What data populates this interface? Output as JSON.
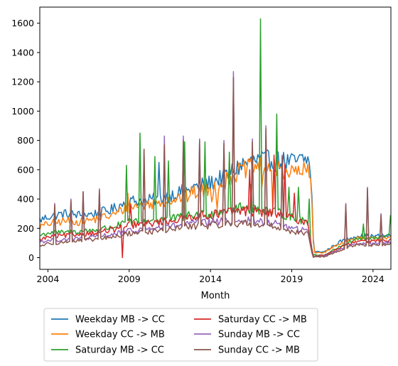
{
  "chart_data": {
    "type": "line",
    "title": "",
    "xlabel": "Month",
    "ylabel": "",
    "xlim": [
      2003.5,
      2025.1
    ],
    "ylim": [
      -80,
      1710
    ],
    "x_ticks": [
      2004,
      2009,
      2014,
      2019,
      2024
    ],
    "x_tick_labels": [
      "2004",
      "2009",
      "2014",
      "2019",
      "2024"
    ],
    "y_ticks": [
      0,
      200,
      400,
      600,
      800,
      1000,
      1200,
      1400,
      1600
    ],
    "y_tick_labels": [
      "0",
      "200",
      "400",
      "600",
      "800",
      "1000",
      "1200",
      "1400",
      "1600"
    ],
    "grid": false,
    "legend": {
      "placement": "below",
      "columns": 2
    },
    "x_step": 0.0833,
    "series": [
      {
        "name": "Weekday MB -> CC",
        "color": "#1f77b4",
        "base": [
          [
            2003.5,
            255
          ],
          [
            2004,
            280
          ],
          [
            2005,
            300
          ],
          [
            2006,
            290
          ],
          [
            2007,
            300
          ],
          [
            2008,
            330
          ],
          [
            2008.8,
            380
          ],
          [
            2009.5,
            390
          ],
          [
            2010,
            385
          ],
          [
            2011,
            410
          ],
          [
            2012,
            440
          ],
          [
            2013,
            480
          ],
          [
            2014,
            510
          ],
          [
            2014.9,
            560
          ],
          [
            2015.5,
            600
          ],
          [
            2016,
            640
          ],
          [
            2017,
            665
          ],
          [
            2018,
            660
          ],
          [
            2019,
            650
          ],
          [
            2020,
            670
          ],
          [
            2020.2,
            560
          ],
          [
            2020.35,
            40
          ],
          [
            2021,
            40
          ],
          [
            2022,
            110
          ],
          [
            2023,
            150
          ],
          [
            2024,
            145
          ],
          [
            2025,
            150
          ]
        ],
        "spikes": [
          [
            2010.1,
            370
          ],
          [
            2010.8,
            650
          ],
          [
            2012.6,
            460
          ]
        ]
      },
      {
        "name": "Weekday CC -> MB",
        "color": "#ff7f0e",
        "base": [
          [
            2003.5,
            210
          ],
          [
            2004,
            230
          ],
          [
            2005,
            250
          ],
          [
            2006,
            245
          ],
          [
            2007,
            265
          ],
          [
            2008,
            290
          ],
          [
            2008.8,
            340
          ],
          [
            2009.5,
            355
          ],
          [
            2010,
            360
          ],
          [
            2011,
            385
          ],
          [
            2012,
            405
          ],
          [
            2013,
            445
          ],
          [
            2014,
            460
          ],
          [
            2014.9,
            520
          ],
          [
            2015.5,
            570
          ],
          [
            2016,
            600
          ],
          [
            2017,
            620
          ],
          [
            2018,
            615
          ],
          [
            2019,
            580
          ],
          [
            2020,
            590
          ],
          [
            2020.2,
            500
          ],
          [
            2020.35,
            35
          ],
          [
            2021,
            35
          ],
          [
            2022,
            100
          ],
          [
            2023,
            130
          ],
          [
            2024,
            130
          ],
          [
            2025,
            140
          ]
        ],
        "spikes": [
          [
            2008.9,
            440
          ],
          [
            2012.6,
            380
          ],
          [
            2014.1,
            380
          ],
          [
            2014.4,
            330
          ],
          [
            2017.2,
            480
          ],
          [
            2017.8,
            350
          ]
        ]
      },
      {
        "name": "Saturday MB -> CC",
        "color": "#2ca02c",
        "base": [
          [
            2003.5,
            150
          ],
          [
            2004,
            170
          ],
          [
            2005,
            170
          ],
          [
            2006,
            180
          ],
          [
            2007,
            190
          ],
          [
            2008,
            210
          ],
          [
            2009,
            240
          ],
          [
            2010,
            250
          ],
          [
            2011,
            260
          ],
          [
            2012,
            270
          ],
          [
            2013,
            290
          ],
          [
            2014,
            300
          ],
          [
            2015,
            330
          ],
          [
            2016,
            340
          ],
          [
            2017,
            330
          ],
          [
            2018,
            310
          ],
          [
            2019,
            280
          ],
          [
            2020,
            240
          ],
          [
            2020.3,
            20
          ],
          [
            2021,
            15
          ],
          [
            2022,
            80
          ],
          [
            2023,
            130
          ],
          [
            2024,
            130
          ],
          [
            2025,
            150
          ]
        ],
        "spikes": [
          [
            2008.8,
            630
          ],
          [
            2009.7,
            850
          ],
          [
            2010.6,
            690
          ],
          [
            2011.4,
            660
          ],
          [
            2012.4,
            790
          ],
          [
            2013.7,
            790
          ],
          [
            2015.2,
            720
          ],
          [
            2016.5,
            500
          ],
          [
            2017.1,
            1630
          ],
          [
            2018.1,
            980
          ],
          [
            2018.8,
            480
          ],
          [
            2019.4,
            480
          ],
          [
            2020.1,
            400
          ],
          [
            2023.4,
            230
          ],
          [
            2025.05,
            290
          ]
        ]
      },
      {
        "name": "Saturday CC -> MB",
        "color": "#d62728",
        "base": [
          [
            2003.5,
            120
          ],
          [
            2004,
            140
          ],
          [
            2005,
            150
          ],
          [
            2006,
            160
          ],
          [
            2007,
            170
          ],
          [
            2008,
            190
          ],
          [
            2009,
            220
          ],
          [
            2010,
            230
          ],
          [
            2011,
            245
          ],
          [
            2012,
            260
          ],
          [
            2013,
            285
          ],
          [
            2014,
            290
          ],
          [
            2015,
            310
          ],
          [
            2016,
            320
          ],
          [
            2017,
            315
          ],
          [
            2018,
            300
          ],
          [
            2019,
            270
          ],
          [
            2020,
            240
          ],
          [
            2020.3,
            10
          ],
          [
            2021,
            15
          ],
          [
            2022,
            70
          ],
          [
            2023,
            110
          ],
          [
            2024,
            110
          ],
          [
            2025,
            120
          ]
        ],
        "dips": [
          [
            2008.6,
            0
          ]
        ],
        "spikes": [
          [
            2009.1,
            360
          ],
          [
            2016.4,
            600
          ],
          [
            2017.9,
            700
          ],
          [
            2018.6,
            640
          ],
          [
            2019.2,
            440
          ]
        ]
      },
      {
        "name": "Sunday MB -> CC",
        "color": "#9467bd",
        "base": [
          [
            2003.5,
            110
          ],
          [
            2004,
            115
          ],
          [
            2005,
            125
          ],
          [
            2006,
            130
          ],
          [
            2007,
            140
          ],
          [
            2008,
            160
          ],
          [
            2009,
            180
          ],
          [
            2010,
            195
          ],
          [
            2011,
            205
          ],
          [
            2012,
            220
          ],
          [
            2013,
            235
          ],
          [
            2014,
            240
          ],
          [
            2015,
            250
          ],
          [
            2016,
            255
          ],
          [
            2017,
            245
          ],
          [
            2018,
            230
          ],
          [
            2019,
            200
          ],
          [
            2020,
            180
          ],
          [
            2020.3,
            10
          ],
          [
            2021,
            10
          ],
          [
            2022,
            60
          ],
          [
            2023,
            100
          ],
          [
            2024,
            95
          ],
          [
            2025,
            100
          ]
        ],
        "spikes": [
          [
            2004.4,
            370
          ],
          [
            2005.4,
            400
          ],
          [
            2006.2,
            450
          ],
          [
            2007.2,
            470
          ],
          [
            2009.9,
            740
          ],
          [
            2011.2,
            830
          ],
          [
            2012.3,
            830
          ],
          [
            2013.3,
            810
          ],
          [
            2014.8,
            800
          ],
          [
            2015.4,
            1270
          ],
          [
            2016.6,
            810
          ],
          [
            2017.4,
            900
          ],
          [
            2018.4,
            700
          ],
          [
            2022.3,
            370
          ],
          [
            2023.7,
            480
          ],
          [
            2024.5,
            300
          ]
        ]
      },
      {
        "name": "Sunday CC -> MB",
        "color": "#8c564b",
        "base": [
          [
            2003.5,
            80
          ],
          [
            2004,
            95
          ],
          [
            2005,
            105
          ],
          [
            2006,
            115
          ],
          [
            2007,
            125
          ],
          [
            2008,
            140
          ],
          [
            2009,
            165
          ],
          [
            2010,
            175
          ],
          [
            2011,
            185
          ],
          [
            2012,
            200
          ],
          [
            2013,
            215
          ],
          [
            2014,
            220
          ],
          [
            2015,
            230
          ],
          [
            2016,
            235
          ],
          [
            2017,
            225
          ],
          [
            2018,
            210
          ],
          [
            2019,
            180
          ],
          [
            2020,
            160
          ],
          [
            2020.3,
            5
          ],
          [
            2021,
            5
          ],
          [
            2022,
            50
          ],
          [
            2023,
            90
          ],
          [
            2024,
            85
          ],
          [
            2025,
            90
          ]
        ],
        "spikes": [
          [
            2004.4,
            360
          ],
          [
            2005.4,
            390
          ],
          [
            2006.2,
            450
          ],
          [
            2007.2,
            460
          ],
          [
            2009.9,
            740
          ],
          [
            2011.2,
            770
          ],
          [
            2012.3,
            800
          ],
          [
            2013.3,
            800
          ],
          [
            2014.8,
            780
          ],
          [
            2015.4,
            1230
          ],
          [
            2016.6,
            790
          ],
          [
            2017.4,
            880
          ],
          [
            2018.4,
            690
          ],
          [
            2022.3,
            360
          ],
          [
            2023.7,
            470
          ],
          [
            2024.5,
            290
          ]
        ]
      }
    ]
  }
}
